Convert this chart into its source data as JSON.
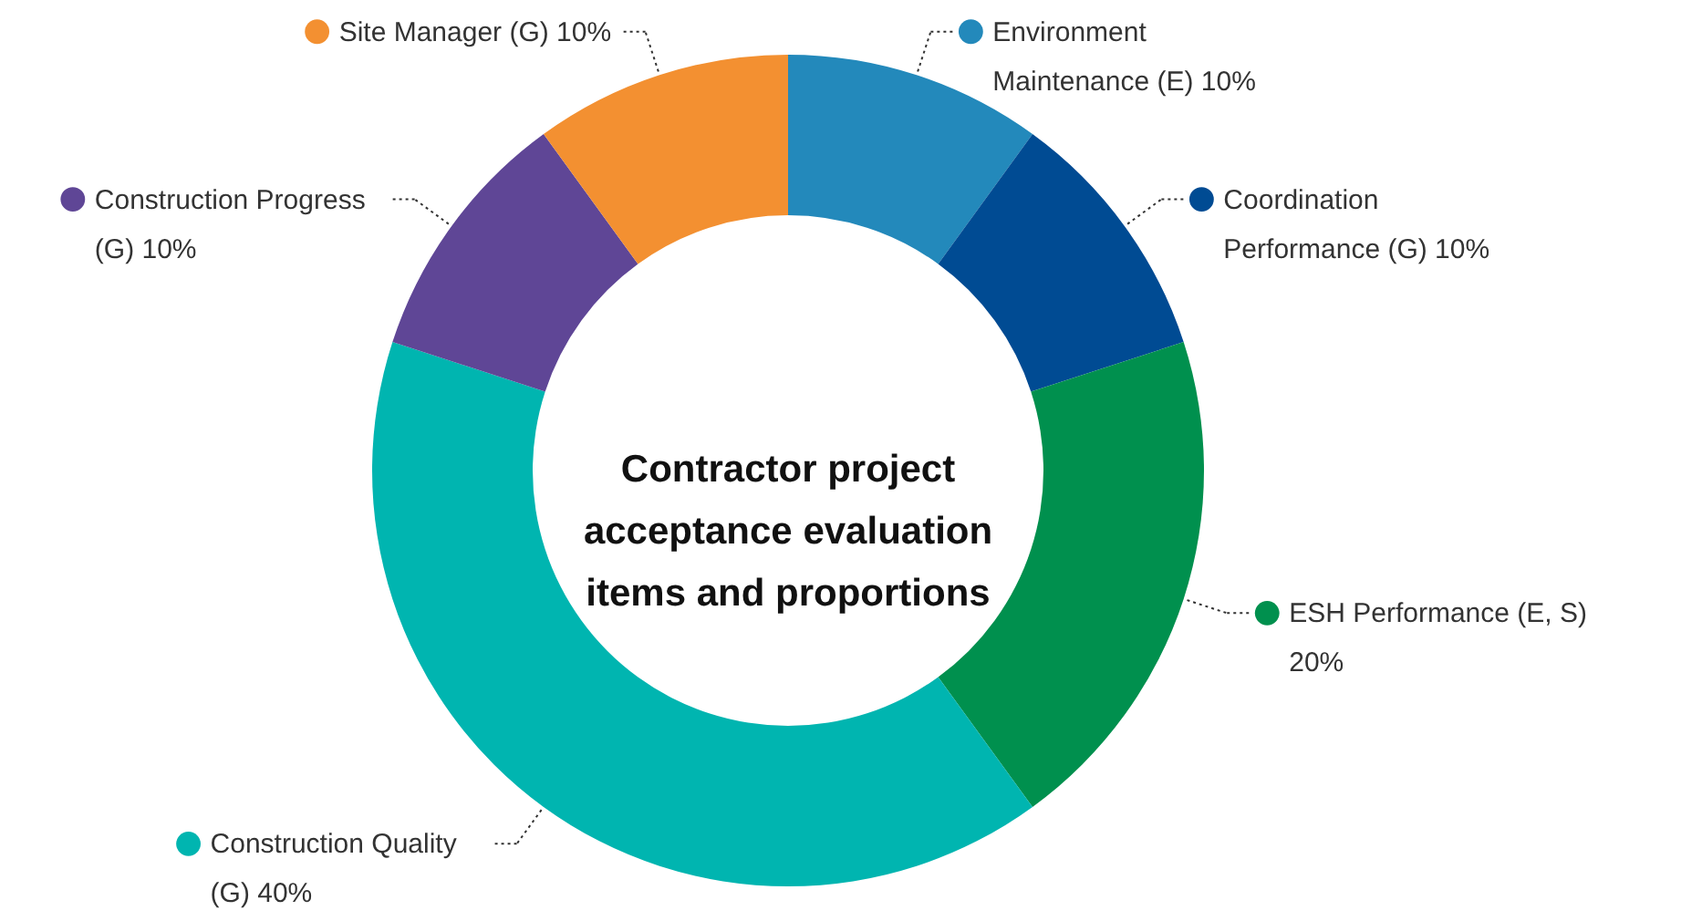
{
  "chart_data": {
    "type": "donut",
    "title": "Contractor project acceptance evaluation items and proportions",
    "categories": [
      "Environment Maintenance (E)",
      "Coordination Performance (G)",
      "ESH Performance (E, S)",
      "Construction Quality (G)",
      "Construction Progress (G)",
      "Site Manager (G)"
    ],
    "values": [
      10,
      10,
      20,
      40,
      10,
      10
    ],
    "value_labels": [
      "10%",
      "10%",
      "20%",
      "40%",
      "10%",
      "10%"
    ],
    "colors": [
      "#2389bb",
      "#004b93",
      "#00904e",
      "#00b5b0",
      "#5f4696",
      "#f39031"
    ],
    "legend": "right"
  }
}
